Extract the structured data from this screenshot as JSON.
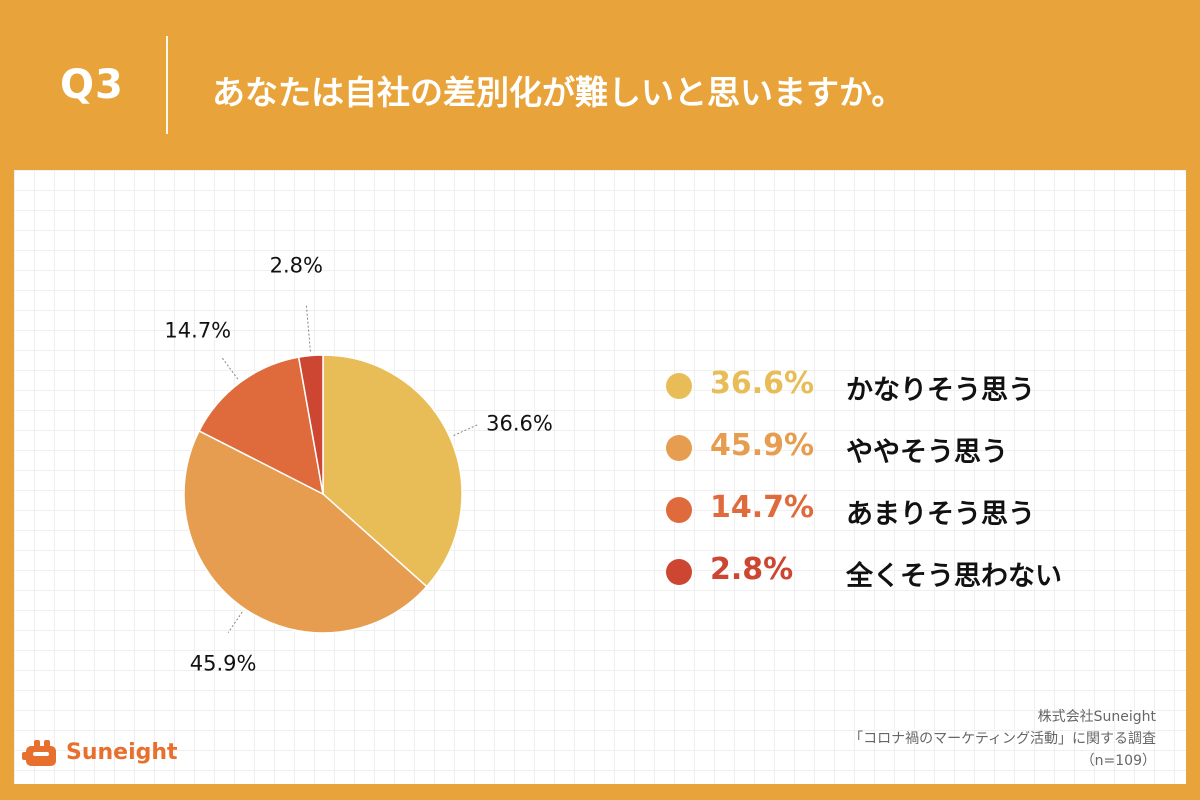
{
  "header": {
    "q_label": "Q3",
    "title": "あなたは自社の差別化が難しいと思いますか。"
  },
  "chart_data": {
    "type": "pie",
    "title": "",
    "start": "12 o'clock, clockwise",
    "slices": [
      {
        "label": "かなりそう思う",
        "value": 36.6,
        "pct_text": "36.6%",
        "color": "#e8bd58"
      },
      {
        "label": "ややそう思う",
        "value": 45.9,
        "pct_text": "45.9%",
        "color": "#e69d4f"
      },
      {
        "label": "あまりそう思う",
        "value": 14.7,
        "pct_text": "14.7%",
        "color": "#df6a3c"
      },
      {
        "label": "全くそう思わない",
        "value": 2.8,
        "pct_text": "2.8%",
        "color": "#cd4632"
      }
    ],
    "legend_placement": "right"
  },
  "footer": {
    "company": "株式会社Suneight",
    "survey": "「コロナ禍のマーケティング活動」に関する調査",
    "sample": "（n=109）",
    "logo_text": "Suneight"
  }
}
